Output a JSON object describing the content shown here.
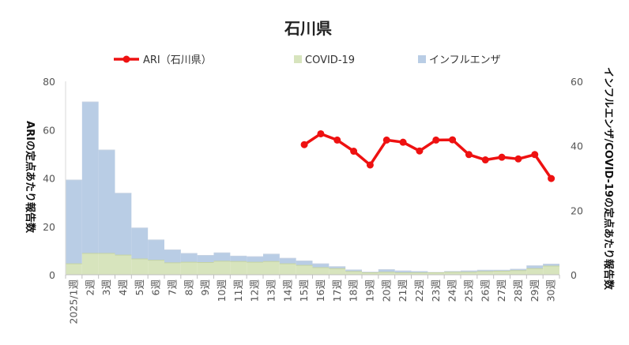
{
  "chart_data": {
    "type": "bar",
    "title": "石川県",
    "categories": [
      "2025/1週",
      "2週",
      "3週",
      "4週",
      "5週",
      "6週",
      "7週",
      "8週",
      "9週",
      "10週",
      "11週",
      "12週",
      "13週",
      "14週",
      "15週",
      "16週",
      "17週",
      "18週",
      "19週",
      "20週",
      "21週",
      "22週",
      "23週",
      "24週",
      "25週",
      "26週",
      "27週",
      "28週",
      "29週",
      "30週"
    ],
    "legend": [
      "ARI（石川県）",
      "COVID-19",
      "インフルエンザ"
    ],
    "left_axis": {
      "label": "ARIの定点あたり報告数",
      "ylim": [
        0,
        80
      ],
      "ticks": [
        "0",
        "20",
        "40",
        "60",
        "80"
      ]
    },
    "right_axis": {
      "label": "インフルエンザ/COVID-19の定点あたり報告数",
      "ylim": [
        0,
        60
      ],
      "ticks": [
        "0",
        "20",
        "40",
        "60"
      ]
    },
    "series": [
      {
        "name": "ARI（石川県）",
        "type": "line",
        "axis": "left",
        "color": "#ee1111",
        "values": [
          null,
          null,
          null,
          null,
          null,
          null,
          null,
          null,
          null,
          null,
          null,
          null,
          null,
          null,
          53.8,
          58.3,
          55.7,
          51.1,
          45.4,
          55.7,
          54.8,
          51.2,
          55.7,
          55.8,
          49.7,
          47.5,
          48.6,
          47.9,
          49.7,
          39.8
        ]
      },
      {
        "name": "COVID-19",
        "type": "stacked-bar",
        "axis": "right",
        "color": "#d7e4bd",
        "values": [
          3.4,
          6.6,
          6.6,
          6.1,
          4.9,
          4.5,
          3.7,
          3.9,
          3.8,
          4.2,
          4.1,
          3.9,
          4.1,
          3.4,
          2.9,
          2.2,
          1.9,
          1.0,
          0.6,
          0.8,
          0.6,
          0.6,
          0.6,
          0.8,
          0.8,
          1.0,
          1.1,
          1.3,
          1.9,
          2.7
        ]
      },
      {
        "name": "インフルエンザ",
        "type": "stacked-bar",
        "axis": "right",
        "color": "#b9cde5",
        "values": [
          26.0,
          47.0,
          32.1,
          19.2,
          9.6,
          6.3,
          4.0,
          2.7,
          2.2,
          2.6,
          1.7,
          1.7,
          2.3,
          1.7,
          1.4,
          1.2,
          0.6,
          0.5,
          0.2,
          0.8,
          0.6,
          0.4,
          0.1,
          0.2,
          0.4,
          0.4,
          0.3,
          0.4,
          0.9,
          0.6
        ]
      }
    ],
    "grid": false,
    "legend_position": "top"
  }
}
